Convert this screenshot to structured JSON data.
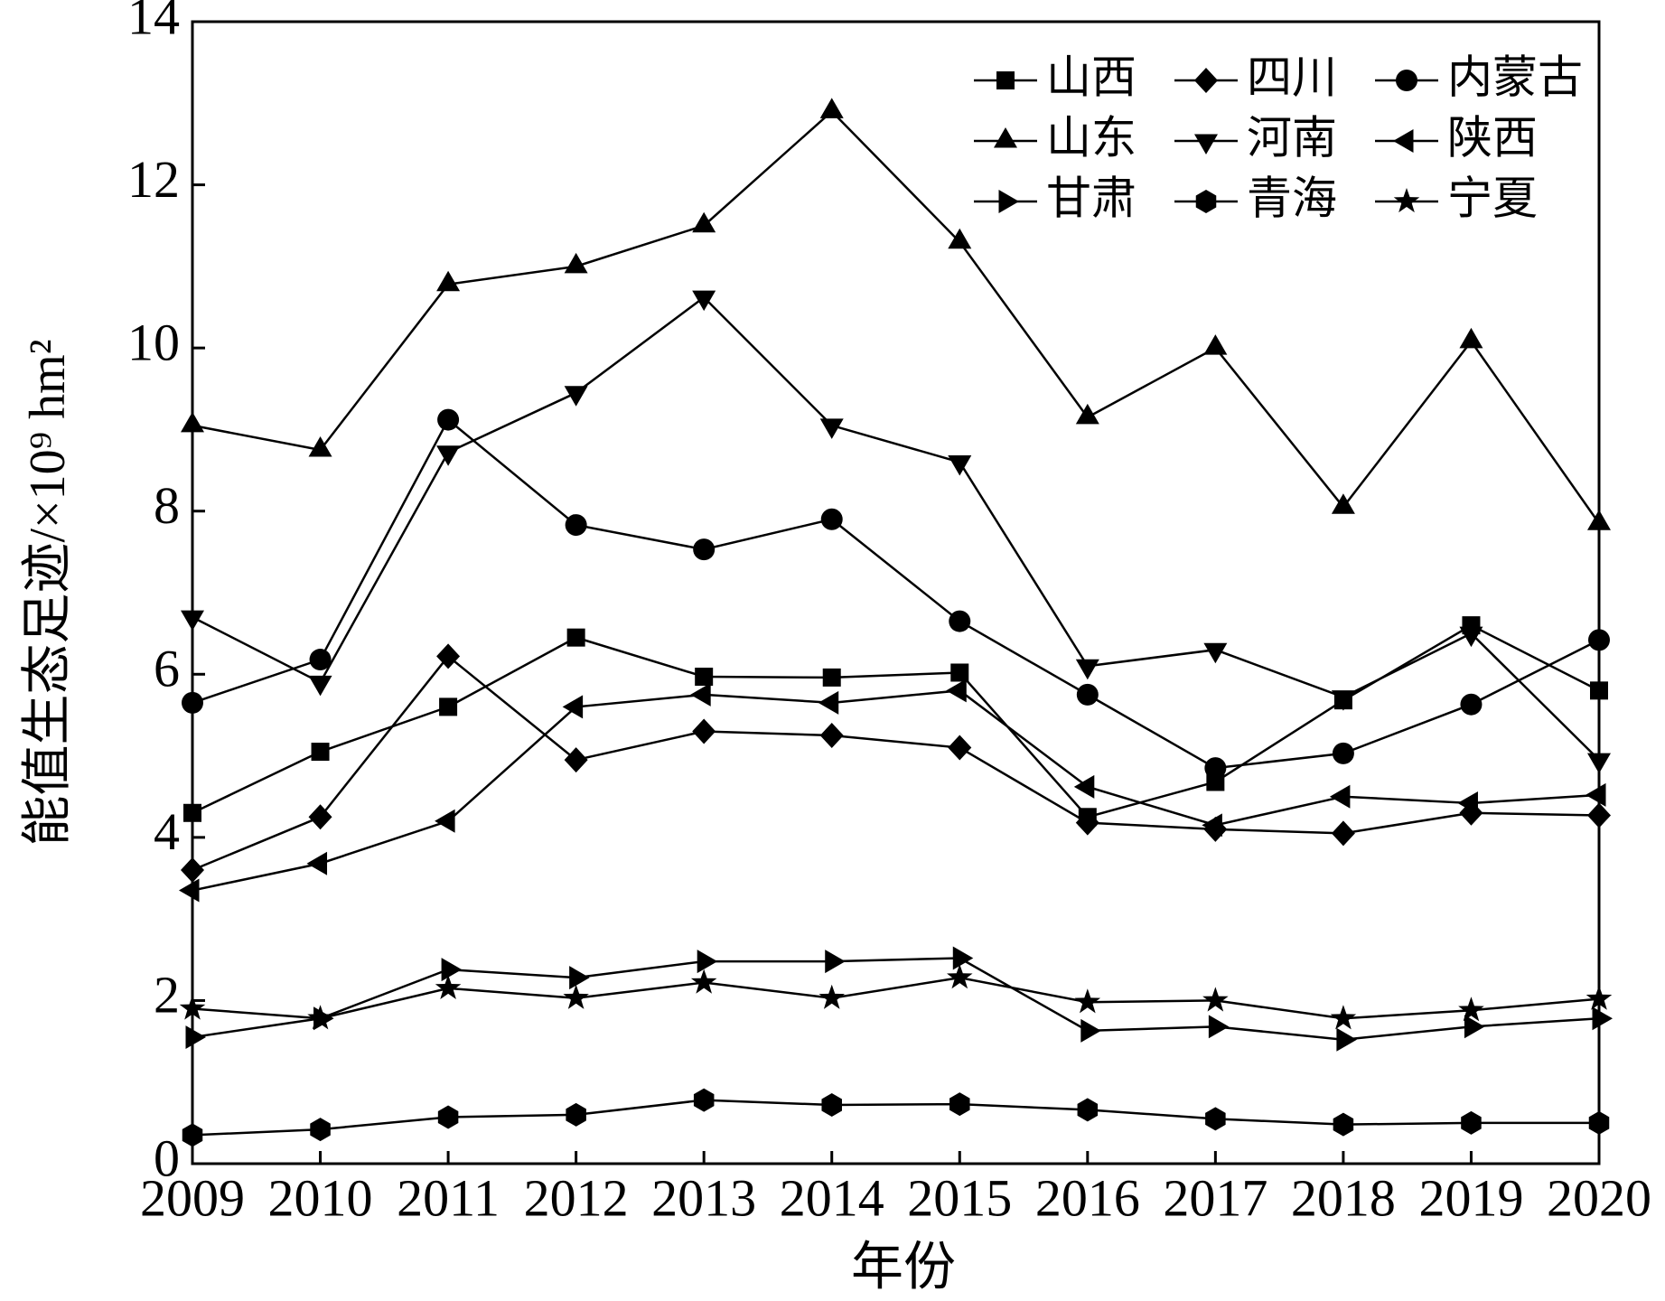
{
  "chart_data": {
    "type": "line",
    "x_label": "年份",
    "y_label": "能值生态足迹/×10⁹ hm²",
    "x": [
      2009,
      2010,
      2011,
      2012,
      2013,
      2014,
      2015,
      2016,
      2017,
      2018,
      2019,
      2020
    ],
    "xlim": [
      2009,
      2020
    ],
    "xticks": [
      2009,
      2010,
      2011,
      2012,
      2013,
      2014,
      2015,
      2016,
      2017,
      2018,
      2019,
      2020
    ],
    "ylim": [
      0,
      14
    ],
    "yticks": [
      0,
      2,
      4,
      6,
      8,
      10,
      12,
      14
    ],
    "legend": "upper right",
    "series": [
      {
        "name": "山西",
        "color": "#000000",
        "marker": "square",
        "values": [
          4.3,
          5.05,
          5.6,
          6.45,
          5.97,
          5.96,
          6.02,
          4.25,
          4.68,
          5.68,
          6.6,
          5.8
        ]
      },
      {
        "name": "四川",
        "color": "#000000",
        "marker": "diamond",
        "values": [
          3.6,
          4.25,
          6.22,
          4.95,
          5.3,
          5.25,
          5.1,
          4.18,
          4.1,
          4.05,
          4.3,
          4.27
        ]
      },
      {
        "name": "内蒙古",
        "color": "#000000",
        "marker": "circle",
        "values": [
          5.65,
          6.18,
          9.12,
          7.83,
          7.53,
          7.9,
          6.65,
          5.75,
          4.85,
          5.03,
          5.63,
          6.42
        ]
      },
      {
        "name": "山东",
        "color": "#000000",
        "marker": "triangle-up",
        "values": [
          9.05,
          8.75,
          10.78,
          11.0,
          11.5,
          12.9,
          11.3,
          9.15,
          10.0,
          8.05,
          10.08,
          7.85
        ]
      },
      {
        "name": "河南",
        "color": "#000000",
        "marker": "triangle-down",
        "values": [
          6.7,
          5.9,
          8.72,
          9.45,
          10.62,
          9.05,
          8.6,
          6.1,
          6.3,
          5.72,
          6.5,
          4.95
        ]
      },
      {
        "name": "陕西",
        "color": "#000000",
        "marker": "triangle-left",
        "values": [
          3.35,
          3.68,
          4.2,
          5.6,
          5.75,
          5.65,
          5.8,
          4.62,
          4.15,
          4.5,
          4.42,
          4.52
        ]
      },
      {
        "name": "甘肃",
        "color": "#000000",
        "marker": "triangle-right",
        "values": [
          1.55,
          1.78,
          2.38,
          2.28,
          2.48,
          2.48,
          2.52,
          1.63,
          1.68,
          1.52,
          1.68,
          1.78
        ]
      },
      {
        "name": "青海",
        "color": "#000000",
        "marker": "hexagon",
        "values": [
          0.35,
          0.42,
          0.57,
          0.6,
          0.78,
          0.72,
          0.73,
          0.66,
          0.55,
          0.48,
          0.5,
          0.5
        ]
      },
      {
        "name": "宁夏",
        "color": "#000000",
        "marker": "star",
        "values": [
          1.9,
          1.78,
          2.15,
          2.03,
          2.22,
          2.03,
          2.28,
          1.98,
          2.0,
          1.78,
          1.88,
          2.02
        ]
      }
    ]
  }
}
